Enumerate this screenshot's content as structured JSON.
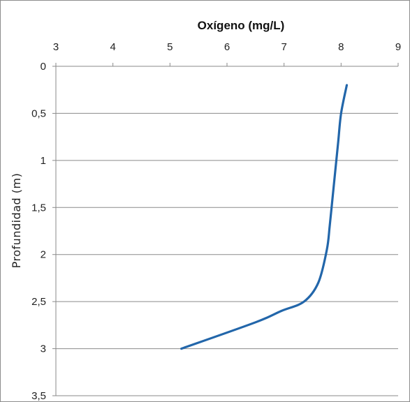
{
  "chart_data": {
    "type": "line",
    "title": "",
    "xlabel": "Oxígeno (mg/L)",
    "ylabel": "Profundidad (m)",
    "x_axis_position": "top",
    "y_axis_inverted": true,
    "xlim": [
      3,
      9
    ],
    "ylim": [
      0,
      3.5
    ],
    "x_ticks": [
      "3",
      "4",
      "5",
      "6",
      "7",
      "8",
      "9"
    ],
    "y_ticks": [
      "0",
      "0,5",
      "1",
      "1,5",
      "2",
      "2,5",
      "3",
      "3,5"
    ],
    "grid": "horizontal",
    "series": [
      {
        "color": "#2266aa",
        "points": [
          {
            "x": 8.1,
            "y": 0.2
          },
          {
            "x": 8.0,
            "y": 0.5
          },
          {
            "x": 7.95,
            "y": 0.8
          },
          {
            "x": 7.9,
            "y": 1.1
          },
          {
            "x": 7.85,
            "y": 1.4
          },
          {
            "x": 7.8,
            "y": 1.7
          },
          {
            "x": 7.75,
            "y": 1.95
          },
          {
            "x": 7.6,
            "y": 2.3
          },
          {
            "x": 7.35,
            "y": 2.5
          },
          {
            "x": 6.95,
            "y": 2.6
          },
          {
            "x": 6.5,
            "y": 2.72
          },
          {
            "x": 5.2,
            "y": 3.0
          }
        ]
      }
    ]
  }
}
